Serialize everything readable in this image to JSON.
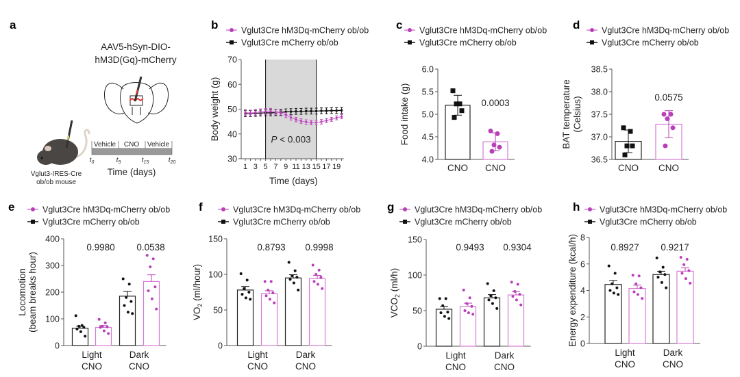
{
  "colors": {
    "treated": "#b83fb8",
    "treated_bar": "#d47ad4",
    "control": "#111111",
    "shade": "#d9d9d9"
  },
  "legend": {
    "treated": "Vglut3Cre hM3Dq-mCherry ob/ob",
    "control": "Vglut3Cre mCherry ob/ob"
  },
  "panel_a": {
    "letter": "a",
    "virus_line1": "AAV5-hSyn-DIO-",
    "virus_line2": "hM3D(Gq)-mCherry",
    "phases": [
      "Vehicle",
      "CNO",
      "Vehicle"
    ],
    "timepoints": [
      {
        "t": "t",
        "sub": "0"
      },
      {
        "t": "t",
        "sub": "5"
      },
      {
        "t": "t",
        "sub": "15"
      },
      {
        "t": "t",
        "sub": "20"
      }
    ],
    "time_label": "Time (days)",
    "mouse_line1": "Vglut3-IRES-Cre",
    "mouse_line2": "ob/ob mouse",
    "icons": [
      "mouse-illustration",
      "brain-section-illustration",
      "syringe-icon"
    ]
  },
  "chart_data": [
    {
      "panel": "b",
      "type": "line",
      "xlabel": "Time (days)",
      "ylabel": "Body weight (g)",
      "ylim": [
        30,
        70
      ],
      "yticks": [
        "30",
        "40",
        "50",
        "60",
        "70"
      ],
      "xlim": [
        1,
        20
      ],
      "xticks": [
        "1",
        "3",
        "5",
        "7",
        "9",
        "11",
        "13",
        "15",
        "17",
        "19"
      ],
      "shaded_range": [
        5,
        15
      ],
      "annotation": {
        "italic": "P",
        "rest": " < 0.003"
      },
      "x": [
        1,
        2,
        3,
        4,
        5,
        6,
        7,
        8,
        9,
        10,
        11,
        12,
        13,
        14,
        15,
        16,
        17,
        18,
        19,
        20
      ],
      "series": [
        {
          "name": "Vglut3Cre hM3Dq-mCherry ob/ob",
          "key": "treated",
          "values": [
            48.6,
            48.4,
            48.7,
            48.9,
            49.1,
            49.1,
            48.8,
            48.4,
            47.6,
            46.6,
            45.8,
            45.2,
            44.8,
            44.6,
            44.6,
            44.9,
            45.4,
            45.9,
            46.5,
            47.0
          ],
          "error": [
            1.2,
            1.2,
            1.2,
            1.2,
            1.2,
            1.2,
            1.1,
            1.1,
            1.0,
            1.0,
            0.9,
            0.9,
            0.9,
            0.9,
            0.9,
            0.9,
            0.8,
            0.8,
            0.8,
            0.8
          ]
        },
        {
          "name": "Vglut3Cre mCherry ob/ob",
          "key": "control",
          "values": [
            48.2,
            48.2,
            48.3,
            48.4,
            48.5,
            48.5,
            48.6,
            48.7,
            48.9,
            49.0,
            49.1,
            49.1,
            49.2,
            49.2,
            49.2,
            49.3,
            49.3,
            49.4,
            49.4,
            49.5
          ],
          "error": [
            1.2,
            1.2,
            1.2,
            1.2,
            1.2,
            1.2,
            1.2,
            1.2,
            1.2,
            1.2,
            1.2,
            1.2,
            1.2,
            1.2,
            1.2,
            1.2,
            1.2,
            1.2,
            1.2,
            1.2
          ]
        }
      ]
    },
    {
      "panel": "c",
      "type": "bar",
      "ylabel_lines": [
        [
          {
            "t": "Food intake (g)"
          }
        ]
      ],
      "ylim": [
        4.0,
        6.0
      ],
      "yticks": [
        "4.0",
        "4.5",
        "5.0",
        "5.5",
        "6.0"
      ],
      "xlabels": [
        [
          "CNO"
        ],
        [
          "CNO"
        ]
      ],
      "pvalues": [
        "0.0003"
      ],
      "bars": [
        {
          "key": "control",
          "mean": 5.2,
          "err": 0.22,
          "points": [
            5.52,
            5.23,
            5.23,
            5.08,
            4.93
          ]
        },
        {
          "key": "treated",
          "mean": 4.39,
          "err": 0.2,
          "points": [
            4.63,
            4.57,
            4.32,
            4.27,
            4.18
          ]
        }
      ]
    },
    {
      "panel": "d",
      "type": "bar",
      "ylabel_lines": [
        [
          {
            "t": "BAT temperature"
          }
        ],
        [
          {
            "t": "(Celsius)"
          }
        ]
      ],
      "ylim": [
        36.5,
        38.5
      ],
      "yticks": [
        "36.5",
        "37.0",
        "37.5",
        "38.0",
        "38.5"
      ],
      "xlabels": [
        [
          "CNO"
        ],
        [
          "CNO"
        ]
      ],
      "pvalues": [
        "0.0575"
      ],
      "bars": [
        {
          "key": "control",
          "mean": 36.9,
          "err": 0.25,
          "points": [
            37.2,
            37.12,
            36.8,
            36.8,
            36.6
          ]
        },
        {
          "key": "treated",
          "mean": 37.28,
          "err": 0.3,
          "points": [
            37.5,
            37.5,
            37.4,
            37.2,
            36.8
          ]
        }
      ]
    },
    {
      "panel": "e",
      "type": "bar",
      "ylabel_lines": [
        [
          {
            "t": "Locomotion"
          }
        ],
        [
          {
            "t": "(beam breaks hour)"
          }
        ]
      ],
      "ylim": [
        0,
        400
      ],
      "yticks": [
        "0",
        "100",
        "200",
        "300",
        "400"
      ],
      "xlabels": [
        [
          "Light",
          "CNO"
        ],
        [
          "Dark",
          "CNO"
        ]
      ],
      "pvalues": [
        "0.9980",
        "0.0538"
      ],
      "bars": [
        {
          "key": "control",
          "mean": 65,
          "err": 8,
          "points": [
            112,
            75,
            72,
            68,
            62,
            52,
            35
          ]
        },
        {
          "key": "treated",
          "mean": 68,
          "err": 7,
          "points": [
            98,
            85,
            72,
            70,
            68,
            55,
            45
          ]
        },
        {
          "key": "control",
          "mean": 185,
          "err": 18,
          "points": [
            250,
            230,
            180,
            165,
            150,
            125,
            120
          ]
        },
        {
          "key": "treated",
          "mean": 240,
          "err": 25,
          "points": [
            338,
            325,
            295,
            220,
            205,
            175,
            137
          ]
        }
      ]
    },
    {
      "panel": "f",
      "type": "bar",
      "ylabel_lines": [
        [
          {
            "t": "VO"
          },
          {
            "t": "2",
            "sub": true
          },
          {
            "t": " (ml/hour)"
          }
        ]
      ],
      "ylim": [
        0,
        150
      ],
      "yticks": [
        "0",
        "50",
        "100",
        "150"
      ],
      "xlabels": [
        [
          "Light",
          "CNO"
        ],
        [
          "Dark",
          "CNO"
        ]
      ],
      "pvalues": [
        "0.8793",
        "0.9998"
      ],
      "bars": [
        {
          "key": "control",
          "mean": 78,
          "err": 5,
          "points": [
            101,
            92,
            80,
            75,
            72,
            67,
            65
          ]
        },
        {
          "key": "treated",
          "mean": 73,
          "err": 4,
          "points": [
            90,
            90,
            78,
            74,
            70,
            65,
            60
          ]
        },
        {
          "key": "control",
          "mean": 95,
          "err": 4.5,
          "points": [
            117,
            105,
            98,
            96,
            93,
            88,
            78
          ]
        },
        {
          "key": "treated",
          "mean": 94,
          "err": 4.5,
          "points": [
            113,
            106,
            100,
            96,
            90,
            86,
            80
          ]
        }
      ]
    },
    {
      "panel": "g",
      "type": "bar",
      "ylabel_lines": [
        [
          {
            "t": "VCO"
          },
          {
            "t": "2",
            "sub": true
          },
          {
            "t": " (ml/h)"
          }
        ]
      ],
      "ylim": [
        0,
        150
      ],
      "yticks": [
        "0",
        "50",
        "100",
        "150"
      ],
      "xlabels": [
        [
          "Light",
          "CNO"
        ],
        [
          "Dark",
          "CNO"
        ]
      ],
      "pvalues": [
        "0.9493",
        "0.9304"
      ],
      "bars": [
        {
          "key": "control",
          "mean": 52,
          "err": 4,
          "points": [
            67,
            67,
            57,
            48,
            47,
            42,
            39
          ]
        },
        {
          "key": "treated",
          "mean": 56,
          "err": 4.5,
          "points": [
            79,
            68,
            60,
            56,
            50,
            47,
            45
          ]
        },
        {
          "key": "control",
          "mean": 68,
          "err": 4.5,
          "points": [
            88,
            78,
            71,
            68,
            65,
            60,
            53
          ]
        },
        {
          "key": "treated",
          "mean": 72,
          "err": 4.5,
          "points": [
            90,
            87,
            77,
            73,
            70,
            65,
            58
          ]
        }
      ]
    },
    {
      "panel": "h",
      "type": "bar",
      "ylabel_lines": [
        [
          {
            "t": "Energy expenditure (kcal/h)"
          }
        ]
      ],
      "ylim": [
        0,
        8
      ],
      "yticks": [
        "0",
        "2",
        "4",
        "6",
        "8"
      ],
      "xlabels": [
        [
          "Light",
          "CNO"
        ],
        [
          "Dark",
          "CNO"
        ]
      ],
      "pvalues": [
        "0.8927",
        "0.9217"
      ],
      "bars": [
        {
          "key": "control",
          "mean": 4.45,
          "err": 0.3,
          "points": [
            5.85,
            5.3,
            4.5,
            4.2,
            4.0,
            3.8,
            3.7
          ]
        },
        {
          "key": "treated",
          "mean": 4.15,
          "err": 0.25,
          "points": [
            5.15,
            5.1,
            4.5,
            4.2,
            3.9,
            3.7,
            3.4
          ]
        },
        {
          "key": "control",
          "mean": 5.2,
          "err": 0.25,
          "points": [
            6.45,
            5.75,
            5.4,
            5.2,
            5.0,
            4.6,
            4.2
          ]
        },
        {
          "key": "treated",
          "mean": 5.45,
          "err": 0.25,
          "points": [
            6.5,
            6.35,
            5.95,
            5.5,
            5.3,
            4.9,
            4.55
          ]
        }
      ]
    }
  ]
}
